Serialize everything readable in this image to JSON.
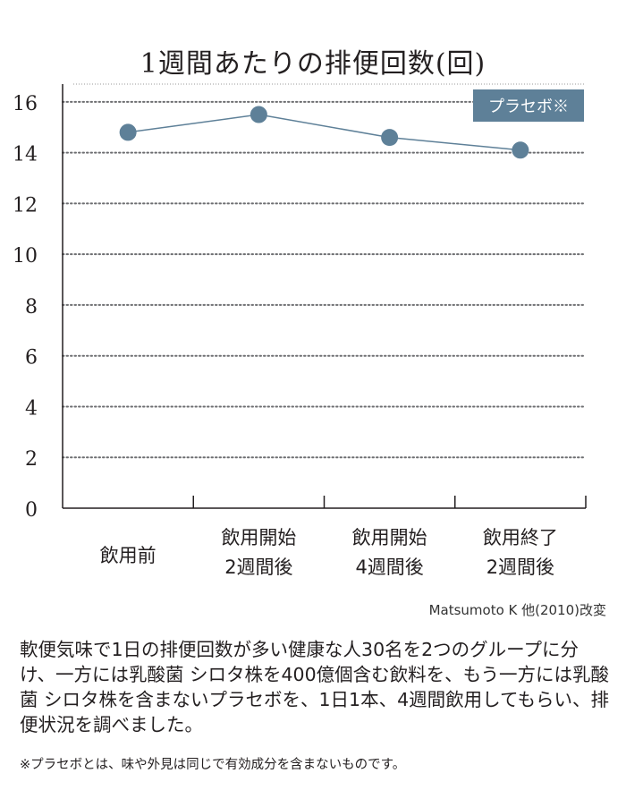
{
  "chart_data": {
    "type": "line",
    "title": "1週間あたりの排便回数(回)",
    "categories": [
      "飲用前",
      "飲用開始\n2週間後",
      "飲用開始\n4週間後",
      "飲用終了\n2週間後"
    ],
    "series": [
      {
        "name": "プラセボ※",
        "values": [
          14.8,
          15.5,
          14.6,
          14.1
        ],
        "color": "#5e8098"
      }
    ],
    "yticks": [
      0,
      2,
      4,
      6,
      8,
      10,
      12,
      14,
      16
    ],
    "ylim": [
      0,
      16.7
    ],
    "grid": true,
    "legend": "top-right",
    "legend_color": "#5e8098"
  },
  "source": "Matsumoto K 他(2010)改変",
  "description": "軟便気味で1日の排便回数が多い健康な人30名を2つのグループに分け、一方には乳酸菌 シロタ株を400億個含む飲料を、もう一方には乳酸菌 シロタ株を含まないプラセボを、1日1本、4週間飲用してもらい、排便状況を調べました。",
  "footnote": "※プラセボとは、味や外見は同じで有効成分を含まないものです。"
}
